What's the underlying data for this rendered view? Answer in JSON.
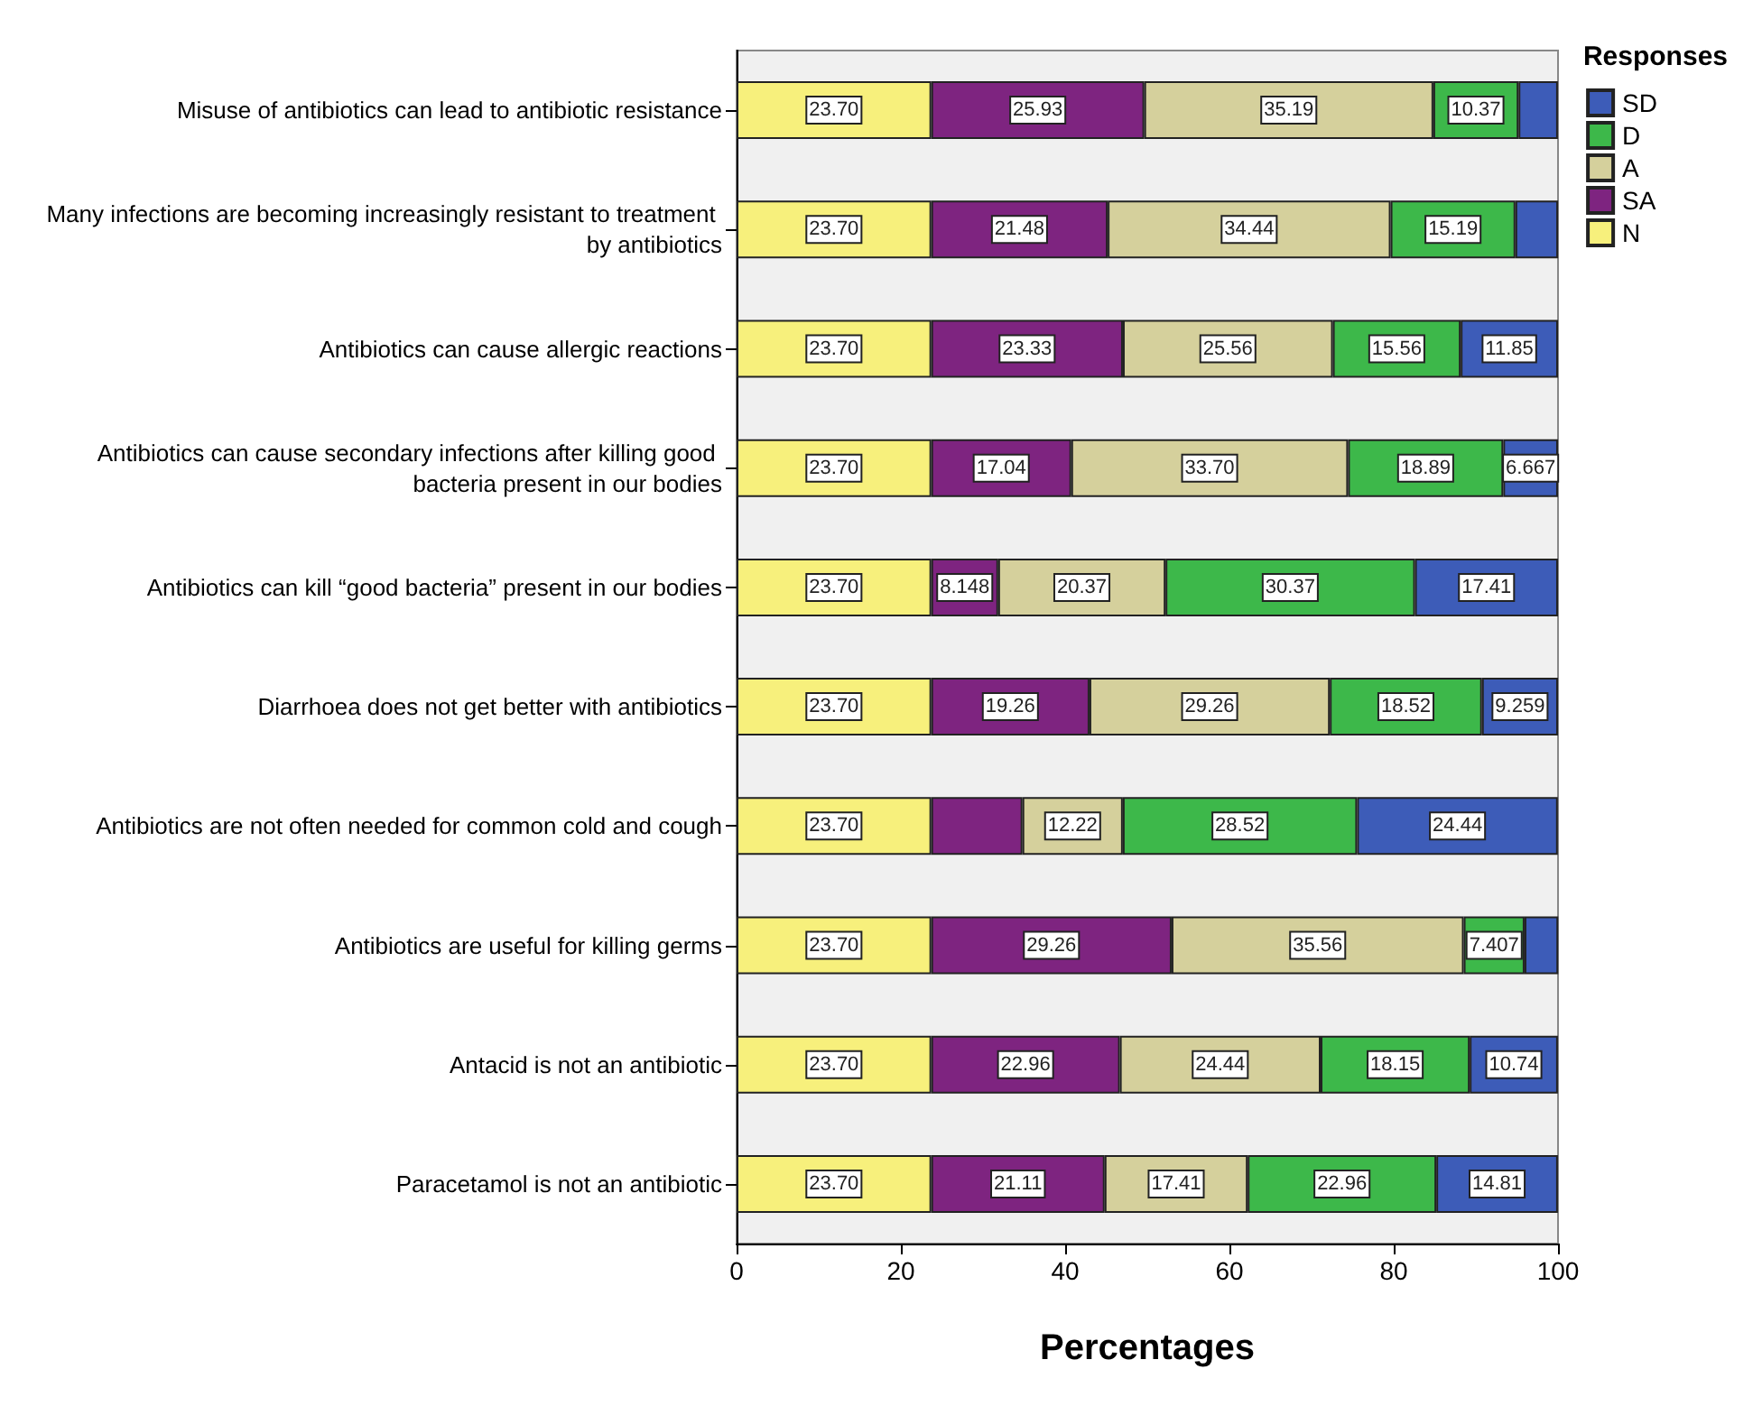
{
  "chart_data": {
    "type": "bar",
    "orientation": "horizontal",
    "stacked": true,
    "xlabel": "Percentages",
    "legend_title": "Responses",
    "legend": "top right",
    "grid": false,
    "categories": [
      "Misuse of antibiotics can lead to antibiotic resistance",
      "Many infections are becoming increasingly resistant to treatment by antibiotics",
      "Antibiotics can cause allergic reactions",
      "Antibiotics can cause secondary infections after killing good bacteria present in our bodies",
      "Antibiotics can kill “good bacteria” present in our bodies",
      "Diarrhoea does not get better with antibiotics",
      "Antibiotics are not often needed for common cold and cough",
      "Antibiotics are useful for killing germs",
      "Antacid is not an antibiotic",
      "Paracetamol is not an antibiotic"
    ],
    "xlim": [
      0,
      100
    ],
    "xticks": [
      0,
      20,
      40,
      60,
      80,
      100
    ],
    "series": [
      {
        "name": "N",
        "color": "#f7f07c",
        "values": [
          23.7,
          23.7,
          23.7,
          23.7,
          23.7,
          23.7,
          23.7,
          23.7,
          23.7,
          23.7
        ],
        "value_labels": [
          "23.70",
          "23.70",
          "23.70",
          "23.70",
          "23.70",
          "23.70",
          "23.70",
          "23.70",
          "23.70",
          "23.70"
        ]
      },
      {
        "name": "SA",
        "color": "#7e2480",
        "values": [
          25.93,
          21.48,
          23.33,
          17.04,
          8.148,
          19.26,
          11.1,
          29.26,
          22.96,
          21.11
        ],
        "value_labels": [
          "25.93",
          "21.48",
          "23.33",
          "17.04",
          "8.148",
          "19.26",
          null,
          "29.26",
          "22.96",
          "21.11"
        ]
      },
      {
        "name": "A",
        "color": "#d5d09c",
        "values": [
          35.19,
          34.44,
          25.56,
          33.7,
          20.37,
          29.26,
          12.22,
          35.56,
          24.44,
          17.41
        ],
        "value_labels": [
          "35.19",
          "34.44",
          "25.56",
          "33.70",
          "20.37",
          "29.26",
          "12.22",
          "35.56",
          "24.44",
          "17.41"
        ]
      },
      {
        "name": "D",
        "color": "#3db84a",
        "values": [
          10.37,
          15.19,
          15.56,
          18.89,
          30.37,
          18.52,
          28.52,
          7.407,
          18.15,
          22.96
        ],
        "value_labels": [
          "10.37",
          "15.19",
          "15.56",
          "18.89",
          "30.37",
          "18.52",
          "28.52",
          "7.407",
          "18.15",
          "22.96"
        ]
      },
      {
        "name": "SD",
        "color": "#3d5cb8",
        "values": [
          4.8,
          5.2,
          11.85,
          6.667,
          17.41,
          9.259,
          24.44,
          4.1,
          10.74,
          14.81
        ],
        "value_labels": [
          null,
          null,
          "11.85",
          "6.667",
          "17.41",
          "9.259",
          "24.44",
          null,
          "10.74",
          "14.81"
        ]
      }
    ]
  }
}
